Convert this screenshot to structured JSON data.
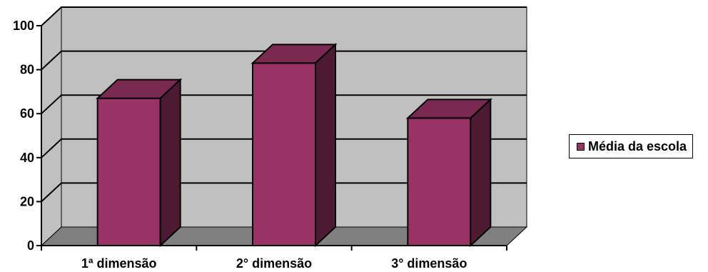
{
  "chart_data": {
    "type": "bar",
    "categories": [
      "1ª dimensão",
      "2° dimensão",
      "3° dimensão"
    ],
    "series": [
      {
        "name": "Média da escola",
        "values": [
          67,
          83,
          58
        ]
      }
    ],
    "title": "",
    "xlabel": "",
    "ylabel": "",
    "ylim": [
      0,
      100
    ],
    "y_ticks": [
      "0",
      "20",
      "40",
      "60",
      "80",
      "100"
    ],
    "grid": true,
    "three_d": true,
    "legend_position": "right",
    "colors": {
      "bar_front": "#993366",
      "bar_top": "#7a2951",
      "bar_side": "#4d1a33",
      "wall": "#c0c0c0",
      "floor": "#808080",
      "gridline": "#000000"
    }
  }
}
